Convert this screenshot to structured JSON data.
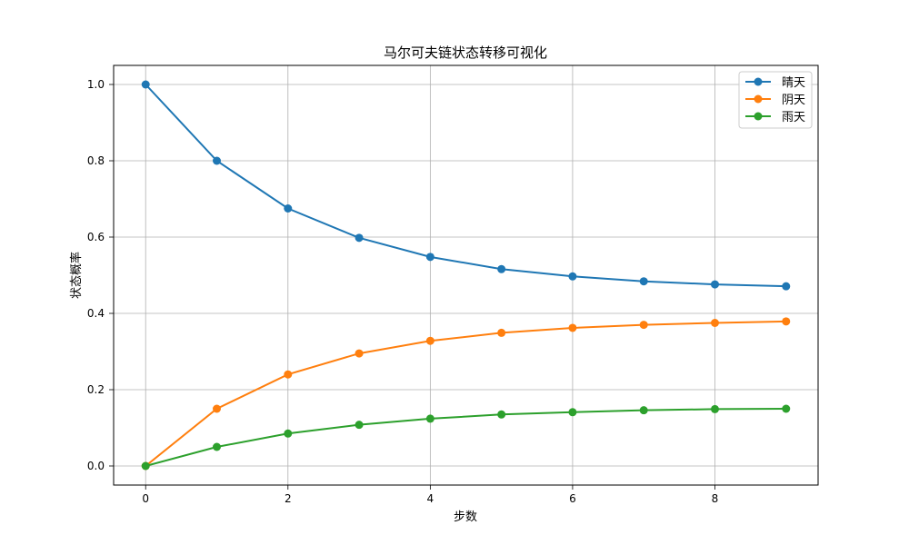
{
  "chart_data": {
    "type": "line",
    "title": "马尔可夫链状态转移可视化",
    "xlabel": "步数",
    "ylabel": "状态概率",
    "x": [
      0,
      1,
      2,
      3,
      4,
      5,
      6,
      7,
      8,
      9
    ],
    "xlim": [
      -0.45,
      9.45
    ],
    "ylim": [
      -0.05,
      1.05
    ],
    "xticks": [
      0,
      2,
      4,
      6,
      8
    ],
    "yticks": [
      0.0,
      0.2,
      0.4,
      0.6,
      0.8,
      1.0
    ],
    "ytick_labels": [
      "0.0",
      "0.2",
      "0.4",
      "0.6",
      "0.8",
      "1.0"
    ],
    "grid": true,
    "legend_position": "top-right",
    "series": [
      {
        "name": "晴天",
        "color": "#1f77b4",
        "values": [
          1.0,
          0.8,
          0.675,
          0.598,
          0.548,
          0.516,
          0.497,
          0.484,
          0.476,
          0.471
        ]
      },
      {
        "name": "阴天",
        "color": "#ff7f0e",
        "values": [
          0.0,
          0.15,
          0.24,
          0.295,
          0.328,
          0.349,
          0.362,
          0.37,
          0.375,
          0.379
        ]
      },
      {
        "name": "雨天",
        "color": "#2ca02c",
        "values": [
          0.0,
          0.05,
          0.085,
          0.108,
          0.124,
          0.135,
          0.141,
          0.146,
          0.149,
          0.15
        ]
      }
    ]
  }
}
